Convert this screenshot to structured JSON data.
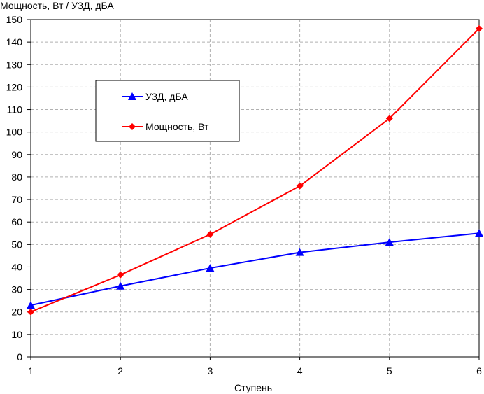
{
  "chart_data": {
    "type": "line",
    "title": "",
    "xlabel": "Ступень",
    "ylabel": "Мощность, Вт / УЗД, дБА",
    "x": [
      1,
      2,
      3,
      4,
      5,
      6
    ],
    "xlim": [
      1,
      6
    ],
    "ylim": [
      0,
      150
    ],
    "ytick_step": 10,
    "grid": true,
    "legend_position": "upper-left",
    "series": [
      {
        "name": "УЗД, дБА",
        "color": "#0000ff",
        "marker": "triangle",
        "values": [
          23,
          31.5,
          39.5,
          46.5,
          51,
          55
        ]
      },
      {
        "name": "Мощность, Вт",
        "color": "#ff0000",
        "marker": "diamond",
        "values": [
          20,
          36.5,
          54.5,
          76,
          106,
          146
        ]
      }
    ]
  }
}
